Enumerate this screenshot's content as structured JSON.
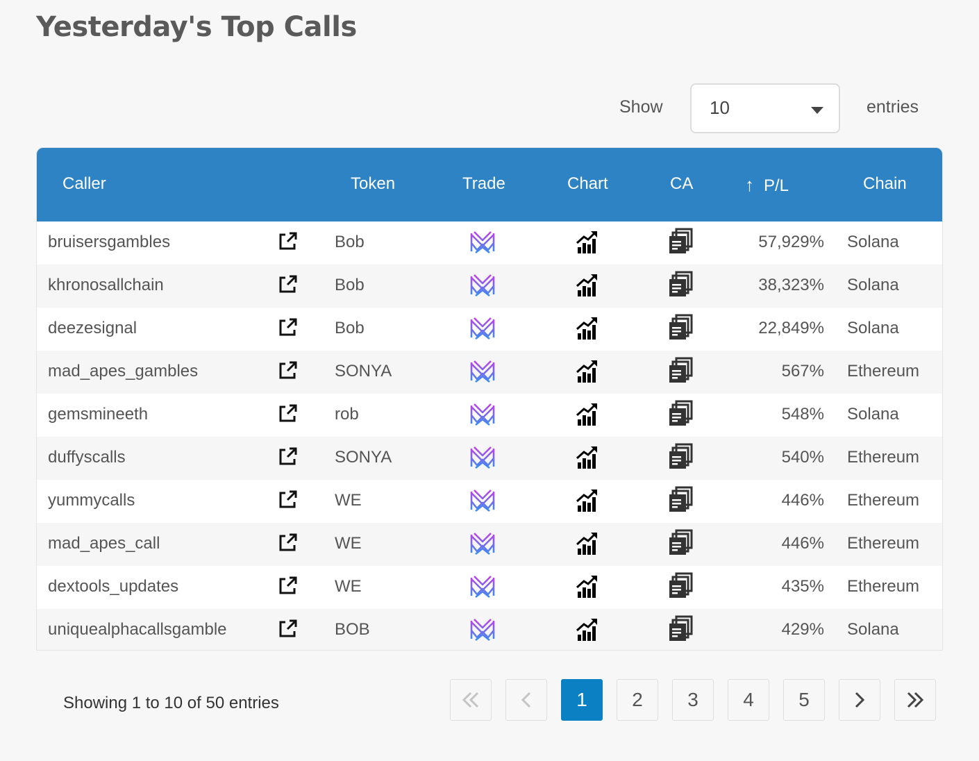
{
  "page": {
    "title": "Yesterday's Top Calls"
  },
  "length_control": {
    "show_label": "Show",
    "selected": "10",
    "entries_label": "entries"
  },
  "table": {
    "headers": {
      "caller": "Caller",
      "token": "Token",
      "trade": "Trade",
      "chart": "Chart",
      "ca": "CA",
      "pl": "P/L",
      "chain": "Chain"
    },
    "sort": {
      "column": "P/L",
      "direction": "arrow-up-icon"
    },
    "rows": [
      {
        "caller": "bruisersgambles",
        "token": "Bob",
        "pl": "57,929%",
        "chain": "Solana"
      },
      {
        "caller": "khronosallchain",
        "token": "Bob",
        "pl": "38,323%",
        "chain": "Solana"
      },
      {
        "caller": "deezesignal",
        "token": "Bob",
        "pl": "22,849%",
        "chain": "Solana"
      },
      {
        "caller": "mad_apes_gambles",
        "token": "SONYA",
        "pl": "567%",
        "chain": "Ethereum"
      },
      {
        "caller": "gemsmineeth",
        "token": "rob",
        "pl": "548%",
        "chain": "Solana"
      },
      {
        "caller": "duffyscalls",
        "token": "SONYA",
        "pl": "540%",
        "chain": "Ethereum"
      },
      {
        "caller": "yummycalls",
        "token": "WE",
        "pl": "446%",
        "chain": "Ethereum"
      },
      {
        "caller": "mad_apes_call",
        "token": "WE",
        "pl": "446%",
        "chain": "Ethereum"
      },
      {
        "caller": "dextools_updates",
        "token": "WE",
        "pl": "435%",
        "chain": "Ethereum"
      },
      {
        "caller": "uniquealphacallsgamble",
        "token": "BOB",
        "pl": "429%",
        "chain": "Solana"
      }
    ],
    "row_icons": {
      "link": "external-link-icon",
      "trade": "trade-logo-icon",
      "chart": "chart-icon",
      "ca": "copy-icon"
    }
  },
  "footer": {
    "info": "Showing 1 to 10 of 50 entries",
    "pagination": {
      "first": "double-chevron-left-icon",
      "prev": "chevron-left-icon",
      "pages": [
        "1",
        "2",
        "3",
        "4",
        "5"
      ],
      "active": "1",
      "next": "chevron-right-icon",
      "last": "double-chevron-right-icon"
    }
  },
  "colors": {
    "header_bg": "#2e83c4",
    "active_page": "#0b80c3",
    "trade_logo_top": "#b64ee8",
    "trade_logo_bottom": "#3a8ef0"
  }
}
